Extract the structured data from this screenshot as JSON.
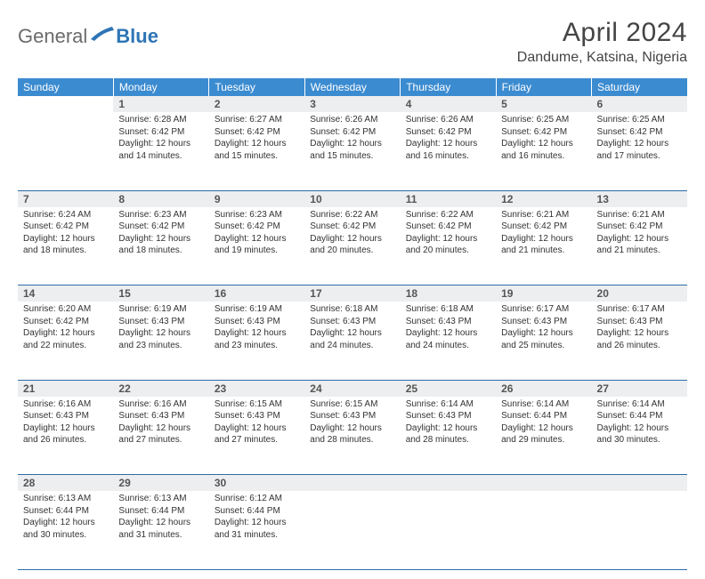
{
  "brand": {
    "part1": "General",
    "part2": "Blue"
  },
  "title": "April 2024",
  "location": "Dandume, Katsina, Nigeria",
  "colors": {
    "header_bg": "#3b8bd0",
    "header_text": "#ffffff",
    "daynum_bg": "#eceeef",
    "rule": "#2e6ca8",
    "brand_gray": "#6b6b6b",
    "brand_blue": "#2e75b6"
  },
  "day_headers": [
    "Sunday",
    "Monday",
    "Tuesday",
    "Wednesday",
    "Thursday",
    "Friday",
    "Saturday"
  ],
  "weeks": [
    [
      null,
      {
        "n": "1",
        "sr": "6:28 AM",
        "ss": "6:42 PM",
        "dl": "12 hours and 14 minutes."
      },
      {
        "n": "2",
        "sr": "6:27 AM",
        "ss": "6:42 PM",
        "dl": "12 hours and 15 minutes."
      },
      {
        "n": "3",
        "sr": "6:26 AM",
        "ss": "6:42 PM",
        "dl": "12 hours and 15 minutes."
      },
      {
        "n": "4",
        "sr": "6:26 AM",
        "ss": "6:42 PM",
        "dl": "12 hours and 16 minutes."
      },
      {
        "n": "5",
        "sr": "6:25 AM",
        "ss": "6:42 PM",
        "dl": "12 hours and 16 minutes."
      },
      {
        "n": "6",
        "sr": "6:25 AM",
        "ss": "6:42 PM",
        "dl": "12 hours and 17 minutes."
      }
    ],
    [
      {
        "n": "7",
        "sr": "6:24 AM",
        "ss": "6:42 PM",
        "dl": "12 hours and 18 minutes."
      },
      {
        "n": "8",
        "sr": "6:23 AM",
        "ss": "6:42 PM",
        "dl": "12 hours and 18 minutes."
      },
      {
        "n": "9",
        "sr": "6:23 AM",
        "ss": "6:42 PM",
        "dl": "12 hours and 19 minutes."
      },
      {
        "n": "10",
        "sr": "6:22 AM",
        "ss": "6:42 PM",
        "dl": "12 hours and 20 minutes."
      },
      {
        "n": "11",
        "sr": "6:22 AM",
        "ss": "6:42 PM",
        "dl": "12 hours and 20 minutes."
      },
      {
        "n": "12",
        "sr": "6:21 AM",
        "ss": "6:42 PM",
        "dl": "12 hours and 21 minutes."
      },
      {
        "n": "13",
        "sr": "6:21 AM",
        "ss": "6:42 PM",
        "dl": "12 hours and 21 minutes."
      }
    ],
    [
      {
        "n": "14",
        "sr": "6:20 AM",
        "ss": "6:42 PM",
        "dl": "12 hours and 22 minutes."
      },
      {
        "n": "15",
        "sr": "6:19 AM",
        "ss": "6:43 PM",
        "dl": "12 hours and 23 minutes."
      },
      {
        "n": "16",
        "sr": "6:19 AM",
        "ss": "6:43 PM",
        "dl": "12 hours and 23 minutes."
      },
      {
        "n": "17",
        "sr": "6:18 AM",
        "ss": "6:43 PM",
        "dl": "12 hours and 24 minutes."
      },
      {
        "n": "18",
        "sr": "6:18 AM",
        "ss": "6:43 PM",
        "dl": "12 hours and 24 minutes."
      },
      {
        "n": "19",
        "sr": "6:17 AM",
        "ss": "6:43 PM",
        "dl": "12 hours and 25 minutes."
      },
      {
        "n": "20",
        "sr": "6:17 AM",
        "ss": "6:43 PM",
        "dl": "12 hours and 26 minutes."
      }
    ],
    [
      {
        "n": "21",
        "sr": "6:16 AM",
        "ss": "6:43 PM",
        "dl": "12 hours and 26 minutes."
      },
      {
        "n": "22",
        "sr": "6:16 AM",
        "ss": "6:43 PM",
        "dl": "12 hours and 27 minutes."
      },
      {
        "n": "23",
        "sr": "6:15 AM",
        "ss": "6:43 PM",
        "dl": "12 hours and 27 minutes."
      },
      {
        "n": "24",
        "sr": "6:15 AM",
        "ss": "6:43 PM",
        "dl": "12 hours and 28 minutes."
      },
      {
        "n": "25",
        "sr": "6:14 AM",
        "ss": "6:43 PM",
        "dl": "12 hours and 28 minutes."
      },
      {
        "n": "26",
        "sr": "6:14 AM",
        "ss": "6:44 PM",
        "dl": "12 hours and 29 minutes."
      },
      {
        "n": "27",
        "sr": "6:14 AM",
        "ss": "6:44 PM",
        "dl": "12 hours and 30 minutes."
      }
    ],
    [
      {
        "n": "28",
        "sr": "6:13 AM",
        "ss": "6:44 PM",
        "dl": "12 hours and 30 minutes."
      },
      {
        "n": "29",
        "sr": "6:13 AM",
        "ss": "6:44 PM",
        "dl": "12 hours and 31 minutes."
      },
      {
        "n": "30",
        "sr": "6:12 AM",
        "ss": "6:44 PM",
        "dl": "12 hours and 31 minutes."
      },
      null,
      null,
      null,
      null
    ]
  ],
  "labels": {
    "sunrise": "Sunrise: ",
    "sunset": "Sunset: ",
    "daylight": "Daylight: "
  }
}
